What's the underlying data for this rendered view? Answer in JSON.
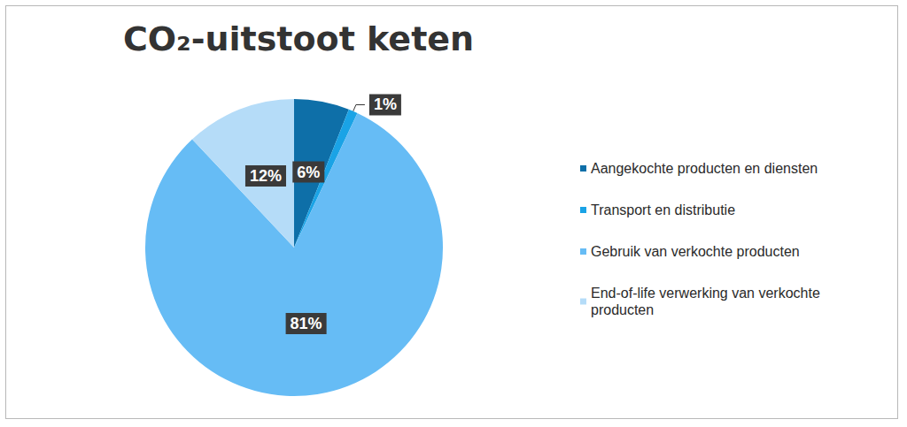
{
  "chart_data": {
    "type": "pie",
    "title": "CO₂-uitstoot keten",
    "categories": [
      "Aangekochte producten en diensten",
      "Transport en distributie",
      "Gebruik van verkochte producten",
      "End-of-life verwerking van verkochte producten"
    ],
    "values": [
      6,
      1,
      81,
      12
    ],
    "value_labels": [
      "6%",
      "1%",
      "81%",
      "12%"
    ],
    "colors": [
      "#0e6fa8",
      "#1aa3e6",
      "#66bcf5",
      "#b5dcf8"
    ],
    "data_labels": true,
    "legend": "right"
  }
}
